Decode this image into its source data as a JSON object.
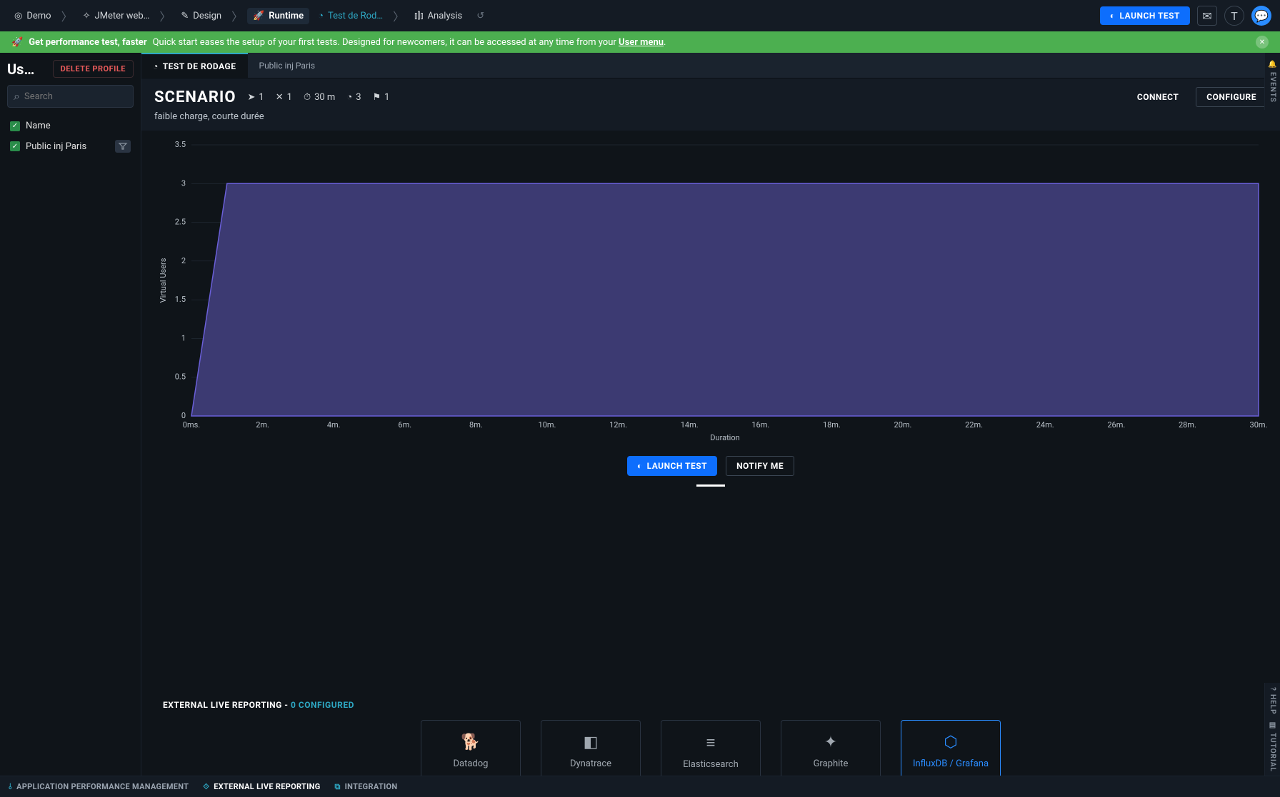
{
  "breadcrumbs": [
    {
      "label": "Demo",
      "icon": "◎"
    },
    {
      "label": "JMeter web…",
      "icon": "✧"
    },
    {
      "label": "Design",
      "icon": "✎"
    },
    {
      "label": "Runtime",
      "icon": "🚀",
      "active": true
    },
    {
      "label": "Test de Rod…",
      "icon": "◔",
      "highlight": true
    },
    {
      "label": "Analysis",
      "icon": "⫾⫿⫾"
    }
  ],
  "launch_label": "LAUNCH TEST",
  "banner": {
    "title": "Get performance test, faster",
    "text_a": "Quick start eases the setup of your first tests. Designed for newcomers, it can be accessed at any time from your ",
    "link": "User menu",
    "text_b": "."
  },
  "sidebar": {
    "title": "Us…",
    "delete_label": "DELETE PROFILE",
    "search_placeholder": "Search",
    "items": [
      {
        "label": "Name"
      },
      {
        "label": "Public inj Paris",
        "badge": true
      }
    ]
  },
  "tabs": [
    {
      "label": "TEST DE RODAGE",
      "active": true
    },
    {
      "label": "Public inj Paris"
    }
  ],
  "scenario": {
    "title": "SCENARIO",
    "subtitle": "faible charge, courte durée",
    "stats": [
      {
        "icon": "➤",
        "val": "1"
      },
      {
        "icon": "✕",
        "val": "1"
      },
      {
        "icon": "⏱",
        "val": "30 m"
      },
      {
        "icon": "◔",
        "val": "3"
      },
      {
        "icon": "⚑",
        "val": "1"
      }
    ],
    "connect_label": "CONNECT",
    "configure_label": "CONFIGURE"
  },
  "chart": {
    "type": "area",
    "ylabel": "Virtual Users",
    "xlabel": "Duration",
    "ylim": [
      0,
      3.5
    ],
    "yticks": [
      "0",
      "0.5",
      "1",
      "1.5",
      "2",
      "2.5",
      "3",
      "3.5"
    ],
    "xticks": [
      "0ms.",
      "2m.",
      "4m.",
      "6m.",
      "8m.",
      "10m.",
      "12m.",
      "14m.",
      "16m.",
      "18m.",
      "20m.",
      "22m.",
      "24m.",
      "26m.",
      "28m.",
      "30m."
    ],
    "fill_color": "#3c3a72",
    "line_color": "#6a5fd8",
    "grid_color": "#2a3442",
    "label_color": "#b8c0c8",
    "x_data": [
      0,
      1,
      30
    ],
    "y_data": [
      0,
      3,
      3
    ]
  },
  "notify_label": "NOTIFY ME",
  "external": {
    "title_a": "EXTERNAL LIVE REPORTING - ",
    "title_b": "0 CONFIGURED",
    "cards": [
      {
        "label": "Datadog",
        "icon": "🐕"
      },
      {
        "label": "Dynatrace",
        "icon": "◧"
      },
      {
        "label": "Elasticsearch",
        "icon": "≡"
      },
      {
        "label": "Graphite",
        "icon": "✦"
      },
      {
        "label": "InfluxDB / Grafana",
        "icon": "⬡",
        "selected": true
      }
    ]
  },
  "bottom_tabs": [
    {
      "label": "APPLICATION PERFORMANCE MANAGEMENT",
      "icon": "⫰"
    },
    {
      "label": "EXTERNAL LIVE REPORTING",
      "icon": "⟐",
      "active": true
    },
    {
      "label": "INTEGRATION",
      "icon": "⧉"
    }
  ],
  "rails": {
    "events": "EVENTS",
    "help": "HELP",
    "tutorial": "TUTORIAL"
  }
}
